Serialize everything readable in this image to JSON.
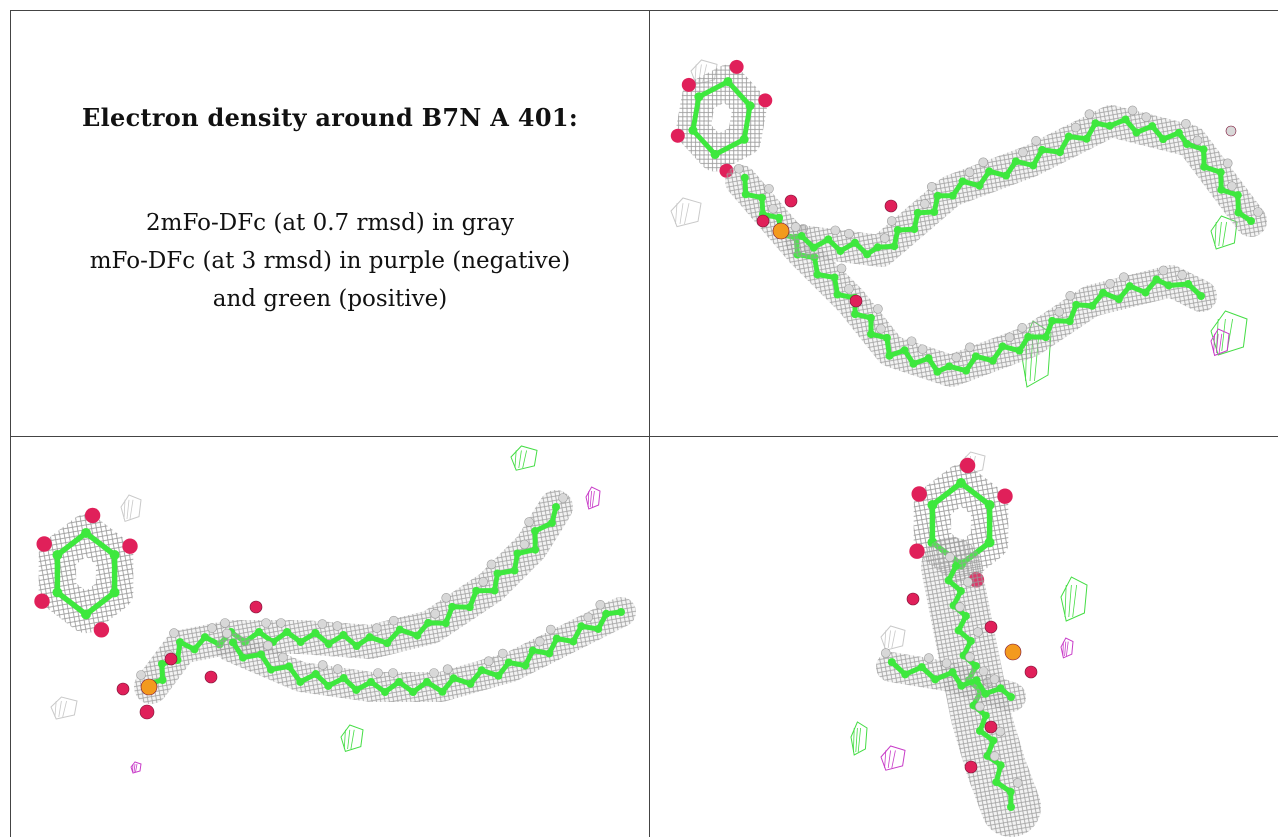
{
  "caption": {
    "title": "Electron density around B7N A 401:",
    "line1": "2mFo-DFc (at 0.7 rmsd) in gray",
    "line2": "mFo-DFc (at 3 rmsd) in purple (negative)",
    "line3": "and green (positive)"
  },
  "colors": {
    "mesh_gray": "#9a9a9a",
    "carbon_green": "#3ee83e",
    "oxygen_red": "#e0205a",
    "phosphorus_orange": "#f39a1e",
    "hydrogen_white": "#d8d8d8",
    "negative_purple": "#c83cc8",
    "positive_green": "#44dd44"
  }
}
